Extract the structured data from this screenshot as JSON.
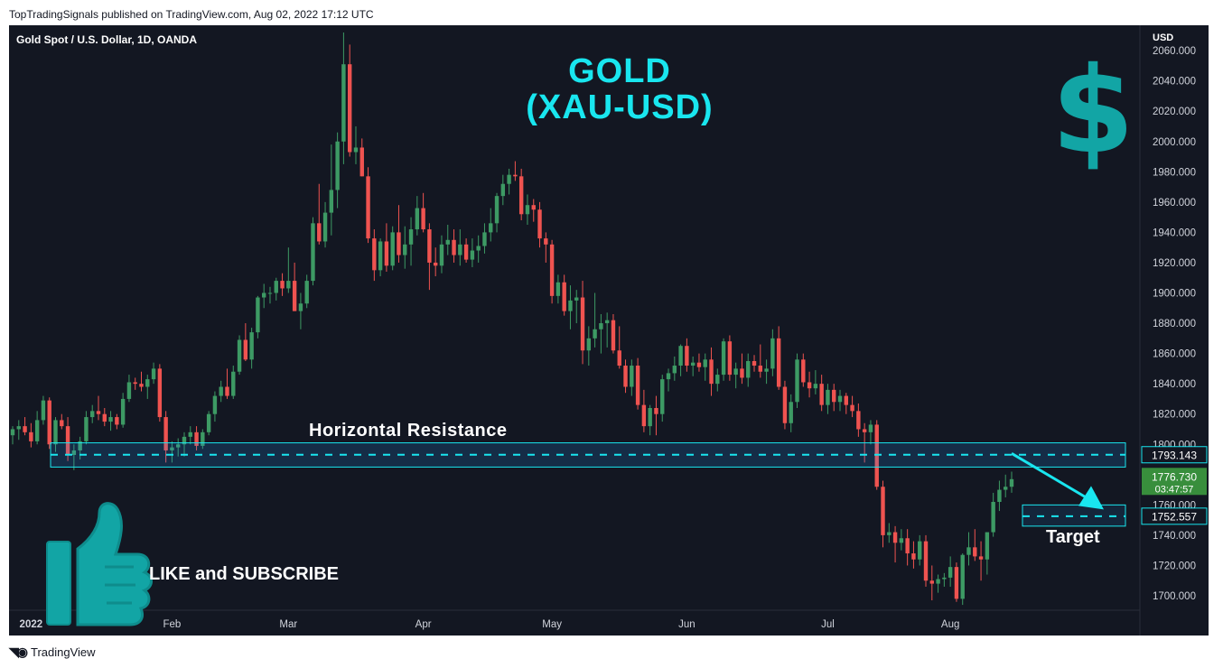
{
  "header": {
    "publisher_text": "TopTradingSignals published on TradingView.com, Aug 02, 2022 17:12 UTC"
  },
  "chart": {
    "symbol": "Gold Spot / U.S. Dollar, 1D, OANDA",
    "currency": "USD",
    "title_line1": "GOLD",
    "title_line2": "(XAU-USD)",
    "resistance_label": "Horizontal Resistance",
    "target_label": "Target",
    "like_text": "LIKE and SUBSCRIBE",
    "resistance_price": "1793.143",
    "target_price": "1752.557",
    "last_price": "1776.730",
    "countdown": "03:47:57"
  },
  "footer": {
    "brand": "TradingView"
  },
  "colors": {
    "background": "#131722",
    "up": "#26a69a",
    "up_body": "#3d9a64",
    "down": "#ef5350",
    "accent": "#19e6ef",
    "dollar": "#12a5a5",
    "last_price_bg": "#388e3c"
  },
  "icons": [
    "dollar-sign-icon",
    "thumbs-up-icon",
    "tradingview-logo-icon"
  ],
  "chart_data": {
    "type": "candlestick",
    "title": "GOLD (XAU-USD)",
    "x_ticks": [
      "2022",
      "Feb",
      "Mar",
      "Apr",
      "May",
      "Jun",
      "Jul",
      "Aug"
    ],
    "y_ticks": [
      1700,
      1720,
      1740,
      1760,
      1780,
      1800,
      1820,
      1840,
      1860,
      1880,
      1900,
      1920,
      1940,
      1960,
      1980,
      2000,
      2020,
      2040,
      2060
    ],
    "y_tick_labels": [
      "1700.000",
      "1720.000",
      "1740.000",
      "1760.000",
      "1780.000",
      "1800.000",
      "1820.000",
      "1840.000",
      "1860.000",
      "1880.000",
      "1900.000",
      "1920.000",
      "1940.000",
      "1960.000",
      "1980.000",
      "2000.000",
      "2020.000",
      "2040.000",
      "2060.000"
    ],
    "ylim": [
      1690,
      2070
    ],
    "resistance_zone": [
      1785,
      1801
    ],
    "resistance_level": 1793.143,
    "target_level": 1752.557,
    "target_zone": [
      1746,
      1760
    ],
    "last_price": 1776.73,
    "ohlc": [
      [
        1806,
        1812,
        1800,
        1810
      ],
      [
        1810,
        1816,
        1803,
        1812
      ],
      [
        1812,
        1818,
        1806,
        1808
      ],
      [
        1808,
        1814,
        1798,
        1802
      ],
      [
        1802,
        1822,
        1800,
        1816
      ],
      [
        1816,
        1832,
        1813,
        1829
      ],
      [
        1829,
        1831,
        1797,
        1800
      ],
      [
        1800,
        1818,
        1795,
        1816
      ],
      [
        1816,
        1820,
        1810,
        1812
      ],
      [
        1812,
        1818,
        1789,
        1793
      ],
      [
        1793,
        1800,
        1783,
        1796
      ],
      [
        1796,
        1805,
        1790,
        1802
      ],
      [
        1802,
        1822,
        1800,
        1818
      ],
      [
        1818,
        1826,
        1814,
        1822
      ],
      [
        1822,
        1832,
        1816,
        1820
      ],
      [
        1820,
        1824,
        1812,
        1815
      ],
      [
        1815,
        1822,
        1809,
        1818
      ],
      [
        1818,
        1820,
        1810,
        1813
      ],
      [
        1813,
        1834,
        1811,
        1830
      ],
      [
        1830,
        1846,
        1828,
        1841
      ],
      [
        1841,
        1844,
        1836,
        1840
      ],
      [
        1840,
        1848,
        1835,
        1838
      ],
      [
        1838,
        1846,
        1830,
        1843
      ],
      [
        1843,
        1854,
        1840,
        1850
      ],
      [
        1850,
        1853,
        1815,
        1818
      ],
      [
        1818,
        1822,
        1788,
        1796
      ],
      [
        1796,
        1802,
        1788,
        1798
      ],
      [
        1798,
        1804,
        1792,
        1800
      ],
      [
        1800,
        1808,
        1792,
        1805
      ],
      [
        1805,
        1812,
        1800,
        1808
      ],
      [
        1808,
        1812,
        1796,
        1799
      ],
      [
        1799,
        1810,
        1797,
        1808
      ],
      [
        1808,
        1822,
        1806,
        1820
      ],
      [
        1820,
        1835,
        1815,
        1832
      ],
      [
        1832,
        1842,
        1828,
        1838
      ],
      [
        1838,
        1850,
        1830,
        1832
      ],
      [
        1832,
        1852,
        1830,
        1848
      ],
      [
        1848,
        1872,
        1846,
        1869
      ],
      [
        1869,
        1880,
        1855,
        1856
      ],
      [
        1856,
        1877,
        1850,
        1874
      ],
      [
        1874,
        1898,
        1870,
        1897
      ],
      [
        1897,
        1906,
        1890,
        1900
      ],
      [
        1900,
        1904,
        1893,
        1900
      ],
      [
        1900,
        1910,
        1895,
        1908
      ],
      [
        1908,
        1913,
        1898,
        1903
      ],
      [
        1903,
        1930,
        1900,
        1908
      ],
      [
        1908,
        1920,
        1888,
        1888
      ],
      [
        1888,
        1900,
        1876,
        1893
      ],
      [
        1893,
        1912,
        1890,
        1908
      ],
      [
        1908,
        1950,
        1905,
        1946
      ],
      [
        1946,
        1972,
        1932,
        1934
      ],
      [
        1934,
        1960,
        1930,
        1953
      ],
      [
        1953,
        1998,
        1938,
        1968
      ],
      [
        1968,
        2006,
        1956,
        2000
      ],
      [
        2000,
        2072,
        1985,
        2051
      ],
      [
        2051,
        2064,
        1990,
        1993
      ],
      [
        1993,
        2010,
        1985,
        1996
      ],
      [
        1996,
        2002,
        1977,
        1977
      ],
      [
        1977,
        1983,
        1933,
        1936
      ],
      [
        1936,
        1942,
        1908,
        1915
      ],
      [
        1915,
        1936,
        1911,
        1934
      ],
      [
        1934,
        1946,
        1914,
        1918
      ],
      [
        1918,
        1944,
        1915,
        1940
      ],
      [
        1940,
        1958,
        1920,
        1925
      ],
      [
        1925,
        1944,
        1916,
        1932
      ],
      [
        1932,
        1950,
        1918,
        1942
      ],
      [
        1942,
        1964,
        1938,
        1956
      ],
      [
        1956,
        1966,
        1940,
        1942
      ],
      [
        1942,
        1946,
        1902,
        1920
      ],
      [
        1920,
        1930,
        1911,
        1918
      ],
      [
        1918,
        1938,
        1913,
        1932
      ],
      [
        1932,
        1945,
        1925,
        1935
      ],
      [
        1935,
        1942,
        1920,
        1925
      ],
      [
        1925,
        1942,
        1918,
        1932
      ],
      [
        1932,
        1936,
        1920,
        1922
      ],
      [
        1922,
        1936,
        1917,
        1928
      ],
      [
        1928,
        1938,
        1920,
        1931
      ],
      [
        1931,
        1946,
        1926,
        1940
      ],
      [
        1940,
        1956,
        1934,
        1946
      ],
      [
        1946,
        1966,
        1940,
        1964
      ],
      [
        1964,
        1978,
        1958,
        1972
      ],
      [
        1972,
        1982,
        1965,
        1978
      ],
      [
        1978,
        1987,
        1974,
        1977
      ],
      [
        1977,
        1982,
        1948,
        1952
      ],
      [
        1952,
        1965,
        1945,
        1958
      ],
      [
        1958,
        1962,
        1947,
        1955
      ],
      [
        1955,
        1960,
        1930,
        1936
      ],
      [
        1936,
        1940,
        1920,
        1932
      ],
      [
        1932,
        1935,
        1893,
        1898
      ],
      [
        1898,
        1912,
        1893,
        1907
      ],
      [
        1907,
        1912,
        1885,
        1888
      ],
      [
        1888,
        1905,
        1876,
        1895
      ],
      [
        1895,
        1902,
        1880,
        1897
      ],
      [
        1897,
        1908,
        1853,
        1862
      ],
      [
        1862,
        1878,
        1852,
        1870
      ],
      [
        1870,
        1900,
        1864,
        1876
      ],
      [
        1876,
        1886,
        1860,
        1880
      ],
      [
        1880,
        1887,
        1864,
        1882
      ],
      [
        1882,
        1886,
        1860,
        1862
      ],
      [
        1862,
        1878,
        1850,
        1852
      ],
      [
        1852,
        1856,
        1834,
        1838
      ],
      [
        1838,
        1856,
        1832,
        1852
      ],
      [
        1852,
        1857,
        1823,
        1826
      ],
      [
        1826,
        1836,
        1808,
        1812
      ],
      [
        1812,
        1826,
        1806,
        1824
      ],
      [
        1824,
        1832,
        1806,
        1820
      ],
      [
        1820,
        1846,
        1815,
        1843
      ],
      [
        1843,
        1850,
        1835,
        1847
      ],
      [
        1847,
        1858,
        1842,
        1852
      ],
      [
        1852,
        1866,
        1845,
        1865
      ],
      [
        1865,
        1870,
        1848,
        1852
      ],
      [
        1852,
        1858,
        1845,
        1854
      ],
      [
        1854,
        1860,
        1848,
        1851
      ],
      [
        1851,
        1860,
        1842,
        1856
      ],
      [
        1856,
        1864,
        1832,
        1840
      ],
      [
        1840,
        1850,
        1835,
        1846
      ],
      [
        1846,
        1870,
        1842,
        1868
      ],
      [
        1868,
        1872,
        1842,
        1846
      ],
      [
        1846,
        1854,
        1837,
        1850
      ],
      [
        1850,
        1860,
        1840,
        1844
      ],
      [
        1844,
        1860,
        1838,
        1855
      ],
      [
        1855,
        1859,
        1848,
        1852
      ],
      [
        1852,
        1866,
        1844,
        1848
      ],
      [
        1848,
        1856,
        1840,
        1850
      ],
      [
        1850,
        1876,
        1845,
        1870
      ],
      [
        1870,
        1878,
        1836,
        1838
      ],
      [
        1838,
        1842,
        1810,
        1814
      ],
      [
        1814,
        1833,
        1808,
        1828
      ],
      [
        1828,
        1860,
        1824,
        1856
      ],
      [
        1856,
        1860,
        1838,
        1841
      ],
      [
        1841,
        1848,
        1831,
        1837
      ],
      [
        1837,
        1849,
        1833,
        1840
      ],
      [
        1840,
        1846,
        1822,
        1826
      ],
      [
        1826,
        1840,
        1820,
        1836
      ],
      [
        1836,
        1840,
        1822,
        1828
      ],
      [
        1828,
        1836,
        1822,
        1832
      ],
      [
        1832,
        1834,
        1820,
        1826
      ],
      [
        1826,
        1832,
        1818,
        1822
      ],
      [
        1822,
        1827,
        1805,
        1810
      ],
      [
        1810,
        1814,
        1788,
        1808
      ],
      [
        1808,
        1816,
        1800,
        1813
      ],
      [
        1813,
        1816,
        1770,
        1772
      ],
      [
        1772,
        1776,
        1732,
        1740
      ],
      [
        1740,
        1748,
        1735,
        1742
      ],
      [
        1742,
        1746,
        1722,
        1735
      ],
      [
        1735,
        1744,
        1730,
        1738
      ],
      [
        1738,
        1744,
        1720,
        1728
      ],
      [
        1728,
        1736,
        1718,
        1724
      ],
      [
        1724,
        1740,
        1720,
        1736
      ],
      [
        1736,
        1740,
        1706,
        1710
      ],
      [
        1710,
        1720,
        1697,
        1708
      ],
      [
        1708,
        1714,
        1702,
        1711
      ],
      [
        1711,
        1715,
        1706,
        1712
      ],
      [
        1712,
        1726,
        1706,
        1719
      ],
      [
        1719,
        1722,
        1696,
        1698
      ],
      [
        1698,
        1728,
        1694,
        1727
      ],
      [
        1727,
        1742,
        1720,
        1732
      ],
      [
        1732,
        1744,
        1723,
        1726
      ],
      [
        1726,
        1736,
        1710,
        1724
      ],
      [
        1724,
        1742,
        1714,
        1742
      ],
      [
        1742,
        1768,
        1739,
        1762
      ],
      [
        1762,
        1776,
        1756,
        1770
      ],
      [
        1770,
        1780,
        1765,
        1772
      ],
      [
        1772,
        1782,
        1768,
        1777
      ]
    ]
  }
}
